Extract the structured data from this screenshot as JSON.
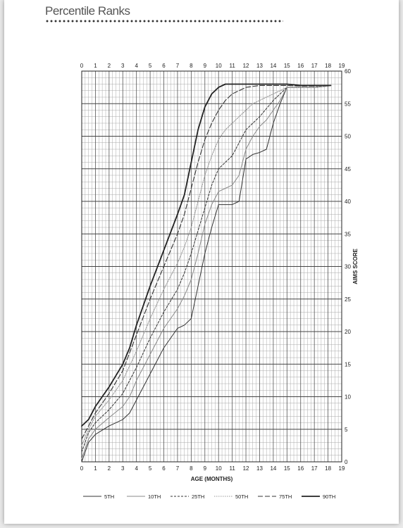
{
  "page": {
    "title": "Percentile Ranks"
  },
  "chart_data": {
    "type": "line",
    "title": "",
    "xlabel": "AGE (MONTHS)",
    "ylabel": "AIMS SCORE",
    "xlim": [
      0,
      19
    ],
    "ylim": [
      0,
      60
    ],
    "x_ticks": [
      0,
      1,
      2,
      3,
      4,
      5,
      6,
      7,
      8,
      9,
      10,
      11,
      12,
      13,
      14,
      15,
      16,
      17,
      18,
      19
    ],
    "y_ticks": [
      0,
      5,
      10,
      15,
      20,
      25,
      30,
      35,
      40,
      45,
      50,
      55,
      60
    ],
    "grid": true,
    "legend_position": "bottom",
    "series": [
      {
        "name": "5TH",
        "style": "solid-thin",
        "points": [
          [
            0,
            0
          ],
          [
            0.5,
            3
          ],
          [
            1,
            4.2
          ],
          [
            2,
            5.5
          ],
          [
            3,
            6.5
          ],
          [
            3.5,
            7.5
          ],
          [
            4,
            9.5
          ],
          [
            5,
            13.5
          ],
          [
            6,
            17.5
          ],
          [
            7,
            20.5
          ],
          [
            7.5,
            21
          ],
          [
            8,
            22
          ],
          [
            8.5,
            27
          ],
          [
            9,
            32
          ],
          [
            9.5,
            36
          ],
          [
            10,
            39.5
          ],
          [
            10.5,
            39.5
          ],
          [
            11,
            39.5
          ],
          [
            11.5,
            40
          ],
          [
            12,
            46.5
          ],
          [
            12.5,
            47.2
          ],
          [
            13,
            47.5
          ],
          [
            13.5,
            48
          ],
          [
            14,
            52
          ],
          [
            14.5,
            55
          ],
          [
            15,
            57.5
          ],
          [
            16,
            57.5
          ],
          [
            17,
            57.5
          ],
          [
            18,
            57.7
          ],
          [
            18.2,
            57.8
          ]
        ]
      },
      {
        "name": "10TH",
        "style": "solid-light",
        "points": [
          [
            0,
            0.5
          ],
          [
            0.5,
            3.5
          ],
          [
            1,
            5
          ],
          [
            2,
            6.8
          ],
          [
            3,
            8.5
          ],
          [
            3.5,
            10
          ],
          [
            4,
            12.5
          ],
          [
            5,
            16.5
          ],
          [
            6,
            20.5
          ],
          [
            7,
            23.5
          ],
          [
            7.5,
            25.5
          ],
          [
            8,
            28
          ],
          [
            8.5,
            32
          ],
          [
            9,
            36.5
          ],
          [
            9.5,
            39.5
          ],
          [
            10,
            41.5
          ],
          [
            10.5,
            42
          ],
          [
            11,
            42.5
          ],
          [
            11.5,
            44
          ],
          [
            12,
            48
          ],
          [
            12.5,
            50
          ],
          [
            13,
            51.5
          ],
          [
            13.5,
            52.5
          ],
          [
            14,
            54
          ],
          [
            14.5,
            55.5
          ],
          [
            15,
            57.5
          ],
          [
            16,
            57.5
          ],
          [
            17,
            57.5
          ],
          [
            18,
            57.7
          ],
          [
            18.2,
            57.8
          ]
        ]
      },
      {
        "name": "25TH",
        "style": "dashed-short",
        "points": [
          [
            0,
            1.5
          ],
          [
            0.5,
            4.5
          ],
          [
            1,
            6
          ],
          [
            2,
            8
          ],
          [
            3,
            10.5
          ],
          [
            4,
            14.5
          ],
          [
            5,
            19
          ],
          [
            6,
            23
          ],
          [
            7,
            26.5
          ],
          [
            7.5,
            29
          ],
          [
            8,
            32
          ],
          [
            8.5,
            35.5
          ],
          [
            9,
            39
          ],
          [
            9.5,
            42.5
          ],
          [
            10,
            45
          ],
          [
            10.5,
            46
          ],
          [
            11,
            47
          ],
          [
            11.5,
            49
          ],
          [
            12,
            51
          ],
          [
            12.5,
            52
          ],
          [
            13,
            53
          ],
          [
            14,
            55.5
          ],
          [
            14.5,
            56.5
          ],
          [
            15,
            57.5
          ],
          [
            16,
            57.5
          ],
          [
            17,
            57.5
          ],
          [
            18,
            57.7
          ],
          [
            18.2,
            57.8
          ]
        ]
      },
      {
        "name": "50TH",
        "style": "dotted-light",
        "points": [
          [
            0,
            2.5
          ],
          [
            0.5,
            5
          ],
          [
            1,
            7
          ],
          [
            2,
            9.5
          ],
          [
            3,
            12.5
          ],
          [
            4,
            17
          ],
          [
            5,
            22
          ],
          [
            6,
            26.5
          ],
          [
            7,
            30.5
          ],
          [
            7.5,
            33
          ],
          [
            8,
            36
          ],
          [
            8.5,
            40
          ],
          [
            9,
            44
          ],
          [
            9.5,
            47
          ],
          [
            10,
            49.5
          ],
          [
            10.5,
            51
          ],
          [
            11,
            52
          ],
          [
            11.5,
            53
          ],
          [
            12,
            54
          ],
          [
            12.5,
            55
          ],
          [
            13,
            55.5
          ],
          [
            13.5,
            56
          ],
          [
            14,
            56.5
          ],
          [
            15,
            57.5
          ],
          [
            16,
            57.5
          ],
          [
            17,
            57.5
          ],
          [
            18,
            57.7
          ],
          [
            18.2,
            57.8
          ]
        ]
      },
      {
        "name": "75TH",
        "style": "dashed-long",
        "points": [
          [
            0,
            3.5
          ],
          [
            0.5,
            5.5
          ],
          [
            1,
            7.5
          ],
          [
            2,
            10.5
          ],
          [
            3,
            14
          ],
          [
            4,
            19.5
          ],
          [
            5,
            25
          ],
          [
            6,
            30
          ],
          [
            7,
            35
          ],
          [
            7.5,
            38
          ],
          [
            8,
            42
          ],
          [
            8.5,
            46
          ],
          [
            9,
            49.5
          ],
          [
            9.5,
            52
          ],
          [
            10,
            54
          ],
          [
            10.5,
            55.5
          ],
          [
            11,
            56.5
          ],
          [
            12,
            57.5
          ],
          [
            13,
            57.8
          ],
          [
            14,
            57.8
          ],
          [
            15,
            57.8
          ],
          [
            16,
            57.7
          ],
          [
            17,
            57.7
          ],
          [
            18,
            57.8
          ],
          [
            18.2,
            57.8
          ]
        ]
      },
      {
        "name": "90TH",
        "style": "solid-bold",
        "points": [
          [
            0,
            5.5
          ],
          [
            0.5,
            6.5
          ],
          [
            1,
            8.5
          ],
          [
            2,
            11.5
          ],
          [
            3,
            15
          ],
          [
            3.5,
            17.5
          ],
          [
            4,
            21
          ],
          [
            5,
            27
          ],
          [
            6,
            32.5
          ],
          [
            7,
            38
          ],
          [
            7.5,
            41
          ],
          [
            8,
            46
          ],
          [
            8.5,
            51
          ],
          [
            9,
            54.5
          ],
          [
            9.5,
            56.5
          ],
          [
            10,
            57.5
          ],
          [
            10.5,
            58
          ],
          [
            11,
            58
          ],
          [
            12,
            58
          ],
          [
            13,
            58
          ],
          [
            14,
            58
          ],
          [
            15,
            58
          ],
          [
            16,
            57.8
          ],
          [
            17,
            57.8
          ],
          [
            18,
            57.8
          ],
          [
            18.2,
            57.8
          ]
        ]
      }
    ]
  }
}
